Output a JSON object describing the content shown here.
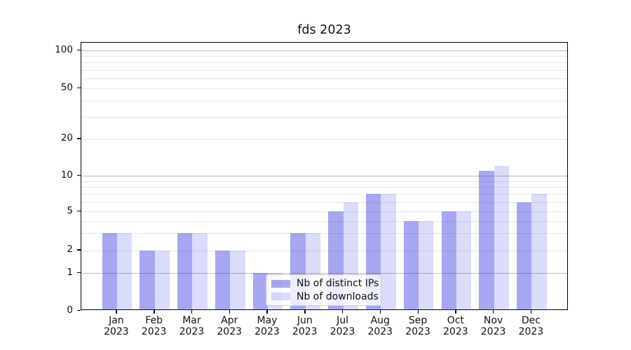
{
  "title": "fds 2023",
  "chart_data": {
    "type": "bar",
    "categories": [
      "Jan",
      "Feb",
      "Mar",
      "Apr",
      "May",
      "Jun",
      "Jul",
      "Aug",
      "Sep",
      "Oct",
      "Nov",
      "Dec"
    ],
    "category_year": "2023",
    "series": [
      {
        "name": "Nb of distinct IPs",
        "values": [
          3,
          2,
          3,
          2,
          1,
          3,
          5,
          7,
          4,
          5,
          11,
          6
        ]
      },
      {
        "name": "Nb of downloads",
        "values": [
          3,
          2,
          3,
          2,
          1,
          3,
          6,
          7,
          4,
          5,
          12,
          7
        ]
      }
    ],
    "y_tick_labels": [
      "100",
      "50",
      "20",
      "10",
      "5",
      "2",
      "1",
      "0"
    ],
    "y_tick_values": [
      100,
      50,
      20,
      10,
      5,
      2,
      1,
      0
    ],
    "yscale": "log",
    "grid": true,
    "legend_position": "lower center"
  },
  "colors": {
    "series1_bar": "rgba(34,34,221,0.40)",
    "series2_bar": "rgba(34,34,221,0.16)",
    "grid_major": "#bdbdbd",
    "grid_minor": "#e7e7e7",
    "axis": "#000000",
    "text": "#111111"
  }
}
